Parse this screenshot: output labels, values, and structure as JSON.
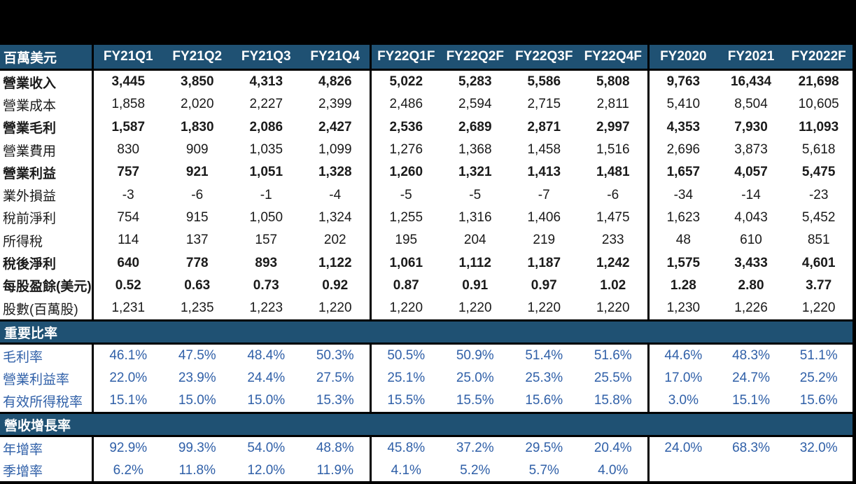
{
  "chart_data": {
    "type": "table",
    "unit_label": "百萬美元",
    "column_headers": [
      "FY21Q1",
      "FY21Q2",
      "FY21Q3",
      "FY21Q4",
      "FY22Q1F",
      "FY22Q2F",
      "FY22Q3F",
      "FY22Q4F",
      "FY2020",
      "FY2021",
      "FY2022F"
    ],
    "column_groups": [
      [
        "FY21Q1",
        "FY21Q2",
        "FY21Q3",
        "FY21Q4"
      ],
      [
        "FY22Q1F",
        "FY22Q2F",
        "FY22Q3F",
        "FY22Q4F"
      ],
      [
        "FY2020",
        "FY2021",
        "FY2022F"
      ]
    ],
    "financial_rows": [
      {
        "label": "營業收入",
        "bold": true,
        "values": [
          "3,445",
          "3,850",
          "4,313",
          "4,826",
          "5,022",
          "5,283",
          "5,586",
          "5,808",
          "9,763",
          "16,434",
          "21,698"
        ]
      },
      {
        "label": "營業成本",
        "bold": false,
        "values": [
          "1,858",
          "2,020",
          "2,227",
          "2,399",
          "2,486",
          "2,594",
          "2,715",
          "2,811",
          "5,410",
          "8,504",
          "10,605"
        ]
      },
      {
        "label": "營業毛利",
        "bold": true,
        "values": [
          "1,587",
          "1,830",
          "2,086",
          "2,427",
          "2,536",
          "2,689",
          "2,871",
          "2,997",
          "4,353",
          "7,930",
          "11,093"
        ]
      },
      {
        "label": "營業費用",
        "bold": false,
        "values": [
          "830",
          "909",
          "1,035",
          "1,099",
          "1,276",
          "1,368",
          "1,458",
          "1,516",
          "2,696",
          "3,873",
          "5,618"
        ]
      },
      {
        "label": "營業利益",
        "bold": true,
        "values": [
          "757",
          "921",
          "1,051",
          "1,328",
          "1,260",
          "1,321",
          "1,413",
          "1,481",
          "1,657",
          "4,057",
          "5,475"
        ]
      },
      {
        "label": "業外損益",
        "bold": false,
        "values": [
          "-3",
          "-6",
          "-1",
          "-4",
          "-5",
          "-5",
          "-7",
          "-6",
          "-34",
          "-14",
          "-23"
        ]
      },
      {
        "label": "稅前淨利",
        "bold": false,
        "values": [
          "754",
          "915",
          "1,050",
          "1,324",
          "1,255",
          "1,316",
          "1,406",
          "1,475",
          "1,623",
          "4,043",
          "5,452"
        ]
      },
      {
        "label": "所得稅",
        "bold": false,
        "values": [
          "114",
          "137",
          "157",
          "202",
          "195",
          "204",
          "219",
          "233",
          "48",
          "610",
          "851"
        ]
      },
      {
        "label": "稅後淨利",
        "bold": true,
        "values": [
          "640",
          "778",
          "893",
          "1,122",
          "1,061",
          "1,112",
          "1,187",
          "1,242",
          "1,575",
          "3,433",
          "4,601"
        ]
      },
      {
        "label": "每股盈餘(美元)",
        "bold": true,
        "values": [
          "0.52",
          "0.63",
          "0.73",
          "0.92",
          "0.87",
          "0.91",
          "0.97",
          "1.02",
          "1.28",
          "2.80",
          "3.77"
        ]
      },
      {
        "label": "股數(百萬股)",
        "bold": false,
        "values": [
          "1,231",
          "1,235",
          "1,223",
          "1,220",
          "1,220",
          "1,220",
          "1,220",
          "1,220",
          "1,230",
          "1,226",
          "1,220"
        ]
      }
    ],
    "ratio_section_title": "重要比率",
    "ratio_rows": [
      {
        "label": "毛利率",
        "values": [
          "46.1%",
          "47.5%",
          "48.4%",
          "50.3%",
          "50.5%",
          "50.9%",
          "51.4%",
          "51.6%",
          "44.6%",
          "48.3%",
          "51.1%"
        ]
      },
      {
        "label": "營業利益率",
        "values": [
          "22.0%",
          "23.9%",
          "24.4%",
          "27.5%",
          "25.1%",
          "25.0%",
          "25.3%",
          "25.5%",
          "17.0%",
          "24.7%",
          "25.2%"
        ]
      },
      {
        "label": "有效所得稅率",
        "values": [
          "15.1%",
          "15.0%",
          "15.0%",
          "15.3%",
          "15.5%",
          "15.5%",
          "15.6%",
          "15.8%",
          "3.0%",
          "15.1%",
          "15.6%"
        ]
      }
    ],
    "growth_section_title": "營收增長率",
    "growth_rows": [
      {
        "label": "年增率",
        "values": [
          "92.9%",
          "99.3%",
          "54.0%",
          "48.8%",
          "45.8%",
          "37.2%",
          "29.5%",
          "20.4%",
          "24.0%",
          "68.3%",
          "32.0%"
        ]
      },
      {
        "label": "季增率",
        "values": [
          "6.2%",
          "11.8%",
          "12.0%",
          "11.9%",
          "4.1%",
          "5.2%",
          "5.7%",
          "4.0%",
          "",
          "",
          ""
        ]
      }
    ]
  },
  "colors": {
    "header_bg": "#1F5173",
    "header_text": "#FFFFFF",
    "percent_text": "#3060A8",
    "body_text": "#1A1A1A",
    "frame": "#000000",
    "cell_bg": "#FFFFFF"
  }
}
